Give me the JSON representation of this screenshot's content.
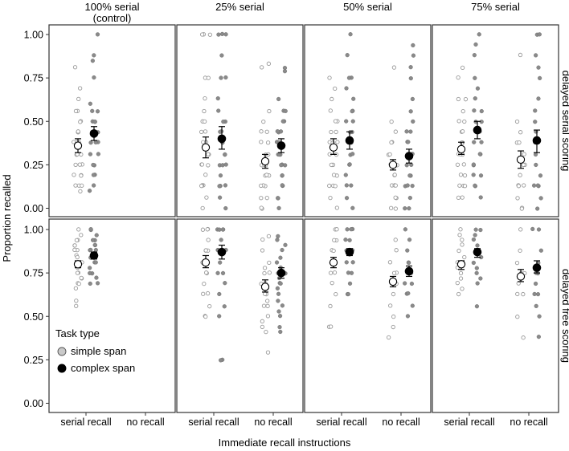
{
  "chart_data": {
    "type": "scatter",
    "ylabel": "Proportion recalled",
    "xlabel": "Immediate recall instructions",
    "x_categories": [
      "serial recall",
      "no recall"
    ],
    "ylim": [
      0,
      1
    ],
    "yticks": [
      "0.00",
      "0.25",
      "0.50",
      "0.75",
      "1.00"
    ],
    "column_labels": [
      [
        "100% serial",
        "(control)"
      ],
      [
        "25% serial"
      ],
      [
        "50% serial"
      ],
      [
        "75% serial"
      ]
    ],
    "row_labels": [
      "delayed serial scoring",
      "delayed free scoring"
    ],
    "legend": {
      "title": "Task type",
      "entries": [
        {
          "label": "simple span",
          "marker": "open",
          "color": "#b3b3b3"
        },
        {
          "label": "complex span",
          "marker": "filled",
          "color": "#000000"
        }
      ],
      "placement": "bottom-left of first bottom panel"
    },
    "series": [
      {
        "name": "simple span",
        "offset": "left"
      },
      {
        "name": "complex span",
        "offset": "right"
      }
    ],
    "panels": [
      {
        "row": 0,
        "col": 0,
        "groups": [
          {
            "x": "serial recall",
            "simple": {
              "mean": 0.36,
              "ci": [
                0.32,
                0.4
              ],
              "points": [
                0.81,
                0.69,
                0.63,
                0.56,
                0.56,
                0.5,
                0.5,
                0.44,
                0.44,
                0.44,
                0.38,
                0.38,
                0.38,
                0.38,
                0.31,
                0.31,
                0.31,
                0.25,
                0.25,
                0.25,
                0.19,
                0.19,
                0.19,
                0.13,
                0.13,
                0.13,
                0.1
              ]
            },
            "complex": {
              "mean": 0.43,
              "ci": [
                0.39,
                0.47
              ],
              "points": [
                1.0,
                0.88,
                0.85,
                0.75,
                0.6,
                0.56,
                0.56,
                0.5,
                0.5,
                0.5,
                0.44,
                0.44,
                0.44,
                0.38,
                0.38,
                0.38,
                0.31,
                0.31,
                0.25,
                0.25,
                0.19,
                0.19,
                0.13,
                0.1
              ]
            }
          },
          {
            "x": "no recall"
          }
        ]
      },
      {
        "row": 0,
        "col": 1,
        "groups": [
          {
            "x": "serial recall",
            "simple": {
              "mean": 0.35,
              "ci": [
                0.29,
                0.41
              ],
              "points": [
                1.0,
                1.0,
                1.0,
                0.75,
                0.75,
                0.63,
                0.56,
                0.5,
                0.5,
                0.44,
                0.44,
                0.38,
                0.38,
                0.31,
                0.31,
                0.25,
                0.25,
                0.25,
                0.19,
                0.13,
                0.13,
                0.13,
                0.13,
                0.06,
                0.0
              ]
            },
            "complex": {
              "mean": 0.4,
              "ci": [
                0.34,
                0.47
              ],
              "points": [
                1.0,
                1.0,
                1.0,
                0.88,
                0.75,
                0.75,
                0.63,
                0.56,
                0.5,
                0.5,
                0.44,
                0.44,
                0.38,
                0.38,
                0.31,
                0.31,
                0.25,
                0.25,
                0.25,
                0.19,
                0.13,
                0.13,
                0.13,
                0.06,
                0.0
              ]
            }
          },
          {
            "x": "no recall",
            "simple": {
              "mean": 0.27,
              "ci": [
                0.23,
                0.31
              ],
              "points": [
                0.83,
                0.81,
                0.56,
                0.5,
                0.44,
                0.44,
                0.38,
                0.38,
                0.31,
                0.31,
                0.25,
                0.25,
                0.25,
                0.19,
                0.19,
                0.19,
                0.13,
                0.13,
                0.13,
                0.06,
                0.06,
                0.0,
                0.0
              ]
            },
            "complex": {
              "mean": 0.36,
              "ci": [
                0.32,
                0.4
              ],
              "points": [
                0.81,
                0.79,
                0.63,
                0.56,
                0.56,
                0.5,
                0.5,
                0.44,
                0.44,
                0.44,
                0.38,
                0.38,
                0.38,
                0.31,
                0.31,
                0.31,
                0.25,
                0.25,
                0.25,
                0.19,
                0.19,
                0.13,
                0.13,
                0.13,
                0.06,
                0.06,
                0.0
              ]
            }
          }
        ]
      },
      {
        "row": 0,
        "col": 2,
        "groups": [
          {
            "x": "serial recall",
            "simple": {
              "mean": 0.35,
              "ci": [
                0.31,
                0.4
              ],
              "points": [
                0.75,
                0.69,
                0.63,
                0.56,
                0.5,
                0.5,
                0.44,
                0.44,
                0.38,
                0.38,
                0.38,
                0.31,
                0.31,
                0.25,
                0.25,
                0.25,
                0.19,
                0.19,
                0.13,
                0.13,
                0.13,
                0.06,
                0.0
              ]
            },
            "complex": {
              "mean": 0.39,
              "ci": [
                0.34,
                0.44
              ],
              "points": [
                1.0,
                0.88,
                0.75,
                0.75,
                0.69,
                0.63,
                0.56,
                0.56,
                0.5,
                0.5,
                0.44,
                0.44,
                0.38,
                0.38,
                0.31,
                0.31,
                0.25,
                0.25,
                0.19,
                0.13,
                0.13,
                0.06,
                0.0
              ]
            }
          },
          {
            "x": "no recall",
            "simple": {
              "mean": 0.25,
              "ci": [
                0.22,
                0.28
              ],
              "points": [
                0.81,
                0.5,
                0.44,
                0.38,
                0.38,
                0.31,
                0.31,
                0.25,
                0.25,
                0.25,
                0.19,
                0.19,
                0.13,
                0.13,
                0.13,
                0.06,
                0.06,
                0.0,
                0.0
              ]
            },
            "complex": {
              "mean": 0.3,
              "ci": [
                0.26,
                0.34
              ],
              "points": [
                0.94,
                0.88,
                0.81,
                0.75,
                0.63,
                0.56,
                0.5,
                0.44,
                0.44,
                0.38,
                0.38,
                0.31,
                0.31,
                0.25,
                0.25,
                0.19,
                0.19,
                0.13,
                0.13,
                0.13,
                0.06,
                0.0,
                0.0
              ]
            }
          }
        ]
      },
      {
        "row": 0,
        "col": 3,
        "groups": [
          {
            "x": "serial recall",
            "simple": {
              "mean": 0.34,
              "ci": [
                0.31,
                0.38
              ],
              "points": [
                0.81,
                0.75,
                0.63,
                0.63,
                0.56,
                0.5,
                0.5,
                0.44,
                0.44,
                0.38,
                0.38,
                0.31,
                0.31,
                0.31,
                0.25,
                0.25,
                0.19,
                0.19,
                0.13,
                0.13,
                0.13,
                0.06,
                0.06
              ]
            },
            "complex": {
              "mean": 0.45,
              "ci": [
                0.4,
                0.5
              ],
              "points": [
                1.0,
                0.94,
                0.88,
                0.75,
                0.69,
                0.63,
                0.56,
                0.56,
                0.5,
                0.5,
                0.44,
                0.44,
                0.38,
                0.38,
                0.31,
                0.31,
                0.25,
                0.25,
                0.19,
                0.19,
                0.13,
                0.13,
                0.06
              ]
            }
          },
          {
            "x": "no recall",
            "simple": {
              "mean": 0.28,
              "ci": [
                0.23,
                0.33
              ],
              "points": [
                0.88,
                0.5,
                0.44,
                0.38,
                0.38,
                0.31,
                0.25,
                0.25,
                0.19,
                0.13,
                0.13,
                0.13,
                0.06,
                0.0,
                0.0
              ]
            },
            "complex": {
              "mean": 0.39,
              "ci": [
                0.32,
                0.45
              ],
              "points": [
                1.0,
                1.0,
                0.88,
                0.81,
                0.75,
                0.63,
                0.56,
                0.5,
                0.44,
                0.38,
                0.31,
                0.25,
                0.19,
                0.13,
                0.13,
                0.13,
                0.06,
                0.0
              ]
            }
          }
        ]
      },
      {
        "row": 1,
        "col": 0,
        "groups": [
          {
            "x": "serial recall",
            "simple": {
              "mean": 0.8,
              "ci": [
                0.78,
                0.82
              ],
              "points": [
                1.0,
                0.97,
                0.94,
                0.94,
                0.91,
                0.91,
                0.88,
                0.88,
                0.85,
                0.84,
                0.81,
                0.81,
                0.78,
                0.75,
                0.75,
                0.72,
                0.72,
                0.69,
                0.69,
                0.66,
                0.59,
                0.56
              ]
            },
            "complex": {
              "mean": 0.85,
              "ci": [
                0.83,
                0.87
              ],
              "points": [
                1.0,
                1.0,
                0.97,
                0.94,
                0.94,
                0.91,
                0.91,
                0.88,
                0.88,
                0.88,
                0.84,
                0.84,
                0.81,
                0.81,
                0.78,
                0.75,
                0.75,
                0.72,
                0.69,
                0.69
              ]
            }
          },
          {
            "x": "no recall"
          }
        ]
      },
      {
        "row": 1,
        "col": 1,
        "groups": [
          {
            "x": "serial recall",
            "simple": {
              "mean": 0.81,
              "ci": [
                0.78,
                0.85
              ],
              "points": [
                1.0,
                1.0,
                1.0,
                0.94,
                0.88,
                0.88,
                0.88,
                0.81,
                0.81,
                0.75,
                0.75,
                0.69,
                0.63,
                0.63,
                0.56,
                0.5,
                0.5
              ]
            },
            "complex": {
              "mean": 0.87,
              "ci": [
                0.83,
                0.91
              ],
              "points": [
                1.0,
                1.0,
                1.0,
                1.0,
                0.94,
                0.88,
                0.88,
                0.88,
                0.81,
                0.75,
                0.75,
                0.69,
                0.63,
                0.56,
                0.5,
                0.25,
                0.25
              ]
            }
          },
          {
            "x": "no recall",
            "simple": {
              "mean": 0.67,
              "ci": [
                0.64,
                0.71
              ],
              "points": [
                0.96,
                0.94,
                0.88,
                0.81,
                0.78,
                0.75,
                0.75,
                0.69,
                0.69,
                0.66,
                0.63,
                0.63,
                0.59,
                0.56,
                0.56,
                0.5,
                0.47,
                0.44,
                0.41,
                0.29
              ]
            },
            "complex": {
              "mean": 0.75,
              "ci": [
                0.72,
                0.78
              ],
              "points": [
                0.96,
                0.94,
                0.91,
                0.88,
                0.84,
                0.81,
                0.78,
                0.75,
                0.75,
                0.72,
                0.69,
                0.69,
                0.66,
                0.63,
                0.59,
                0.56,
                0.53,
                0.5,
                0.44,
                0.41
              ]
            }
          }
        ]
      },
      {
        "row": 1,
        "col": 2,
        "groups": [
          {
            "x": "serial recall",
            "simple": {
              "mean": 0.81,
              "ci": [
                0.78,
                0.84
              ],
              "points": [
                1.0,
                1.0,
                0.94,
                0.94,
                0.88,
                0.88,
                0.81,
                0.81,
                0.75,
                0.75,
                0.69,
                0.63,
                0.56,
                0.44,
                0.44
              ]
            },
            "complex": {
              "mean": 0.87,
              "ci": [
                0.85,
                0.89
              ],
              "points": [
                1.0,
                1.0,
                1.0,
                0.94,
                0.94,
                0.88,
                0.88,
                0.81,
                0.81,
                0.75,
                0.75,
                0.69,
                0.63,
                0.63
              ]
            }
          },
          {
            "x": "no recall",
            "simple": {
              "mean": 0.7,
              "ci": [
                0.67,
                0.73
              ],
              "points": [
                0.94,
                0.88,
                0.81,
                0.75,
                0.75,
                0.69,
                0.69,
                0.63,
                0.56,
                0.5,
                0.44,
                0.38
              ]
            },
            "complex": {
              "mean": 0.76,
              "ci": [
                0.73,
                0.79
              ],
              "points": [
                1.0,
                0.94,
                0.88,
                0.81,
                0.81,
                0.75,
                0.75,
                0.69,
                0.69,
                0.63,
                0.63,
                0.56,
                0.5
              ]
            }
          }
        ]
      },
      {
        "row": 1,
        "col": 3,
        "groups": [
          {
            "x": "serial recall",
            "simple": {
              "mean": 0.8,
              "ci": [
                0.77,
                0.82
              ],
              "points": [
                1.0,
                0.97,
                0.94,
                0.91,
                0.88,
                0.84,
                0.81,
                0.78,
                0.75,
                0.72,
                0.69,
                0.66,
                0.63
              ]
            },
            "complex": {
              "mean": 0.87,
              "ci": [
                0.84,
                0.89
              ],
              "points": [
                1.0,
                1.0,
                0.97,
                0.94,
                0.91,
                0.88,
                0.84,
                0.81,
                0.78,
                0.75,
                0.72,
                0.69,
                0.56
              ]
            }
          },
          {
            "x": "no recall",
            "simple": {
              "mean": 0.73,
              "ci": [
                0.7,
                0.77
              ],
              "points": [
                1.0,
                0.88,
                0.81,
                0.75,
                0.75,
                0.69,
                0.63,
                0.63,
                0.5,
                0.38
              ]
            },
            "complex": {
              "mean": 0.78,
              "ci": [
                0.75,
                0.82
              ],
              "points": [
                1.0,
                1.0,
                0.88,
                0.81,
                0.75,
                0.75,
                0.69,
                0.63,
                0.63,
                0.56,
                0.5,
                0.38
              ]
            }
          }
        ]
      }
    ]
  }
}
